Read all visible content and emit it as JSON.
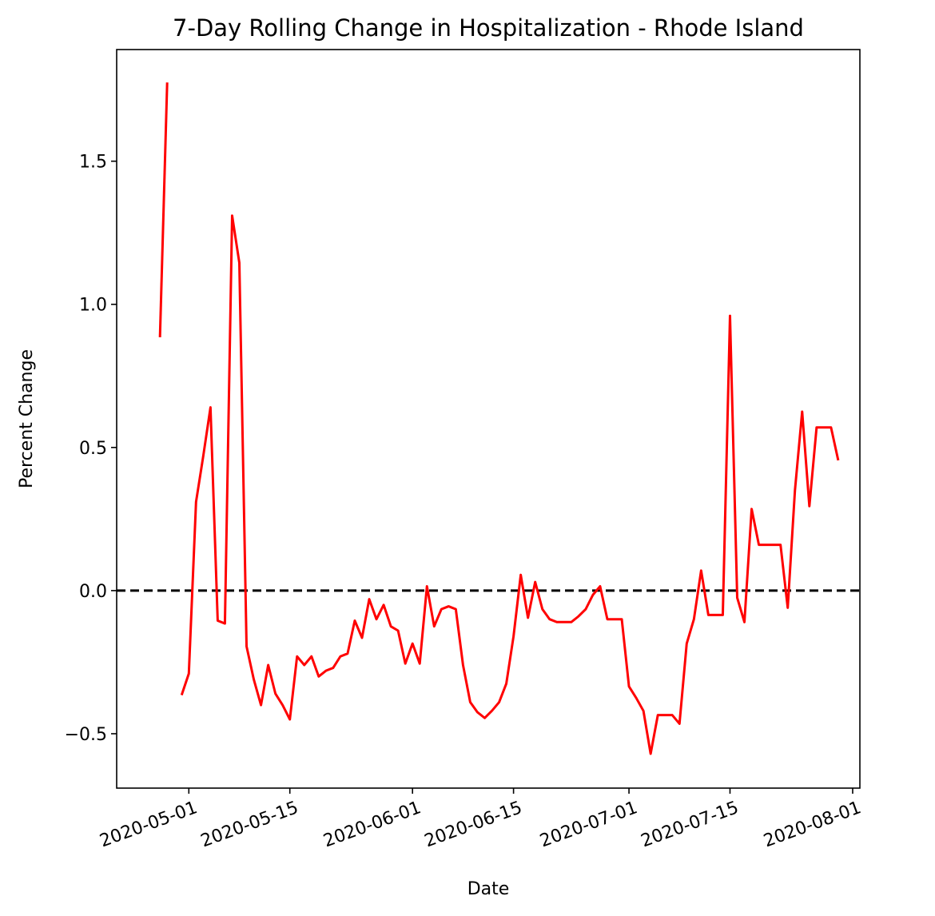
{
  "chart_data": {
    "type": "line",
    "title": "7-Day Rolling Change in Hospitalization - Rhode Island",
    "xlabel": "Date",
    "ylabel": "Percent Change",
    "xlim": [
      "2020-04-21",
      "2020-08-02"
    ],
    "ylim": [
      -0.69,
      1.89
    ],
    "x_ticks": [
      "2020-05-01",
      "2020-05-15",
      "2020-06-01",
      "2020-06-15",
      "2020-07-01",
      "2020-07-15",
      "2020-08-01"
    ],
    "y_ticks": [
      -0.5,
      0.0,
      0.5,
      1.0,
      1.5
    ],
    "y_tick_labels": [
      "−0.5",
      "0.0",
      "0.5",
      "1.0",
      "1.5"
    ],
    "grid": false,
    "reference_line": {
      "y": 0,
      "style": "dashed",
      "color": "#000000"
    },
    "series": [
      {
        "color": "#ff0000",
        "points": [
          [
            "2020-04-27",
            0.885
          ],
          [
            "2020-04-28",
            1.775
          ],
          [
            "2020-04-29",
            null
          ],
          [
            "2020-04-30",
            -0.365
          ],
          [
            "2020-05-01",
            -0.29
          ],
          [
            "2020-05-02",
            0.31
          ],
          [
            "2020-05-03",
            0.47
          ],
          [
            "2020-05-04",
            0.64
          ],
          [
            "2020-05-05",
            -0.105
          ],
          [
            "2020-05-06",
            -0.115
          ],
          [
            "2020-05-07",
            1.31
          ],
          [
            "2020-05-08",
            1.145
          ],
          [
            "2020-05-09",
            -0.195
          ],
          [
            "2020-05-10",
            -0.31
          ],
          [
            "2020-05-11",
            -0.4
          ],
          [
            "2020-05-12",
            -0.26
          ],
          [
            "2020-05-13",
            -0.36
          ],
          [
            "2020-05-14",
            -0.4
          ],
          [
            "2020-05-15",
            -0.45
          ],
          [
            "2020-05-16",
            -0.23
          ],
          [
            "2020-05-17",
            -0.26
          ],
          [
            "2020-05-18",
            -0.23
          ],
          [
            "2020-05-19",
            -0.3
          ],
          [
            "2020-05-20",
            -0.28
          ],
          [
            "2020-05-21",
            -0.27
          ],
          [
            "2020-05-22",
            -0.23
          ],
          [
            "2020-05-23",
            -0.22
          ],
          [
            "2020-05-24",
            -0.105
          ],
          [
            "2020-05-25",
            -0.165
          ],
          [
            "2020-05-26",
            -0.03
          ],
          [
            "2020-05-27",
            -0.1
          ],
          [
            "2020-05-28",
            -0.05
          ],
          [
            "2020-05-29",
            -0.125
          ],
          [
            "2020-05-30",
            -0.14
          ],
          [
            "2020-05-31",
            -0.255
          ],
          [
            "2020-06-01",
            -0.185
          ],
          [
            "2020-06-02",
            -0.255
          ],
          [
            "2020-06-03",
            0.015
          ],
          [
            "2020-06-04",
            -0.125
          ],
          [
            "2020-06-05",
            -0.065
          ],
          [
            "2020-06-06",
            -0.055
          ],
          [
            "2020-06-07",
            -0.065
          ],
          [
            "2020-06-08",
            -0.26
          ],
          [
            "2020-06-09",
            -0.39
          ],
          [
            "2020-06-10",
            -0.425
          ],
          [
            "2020-06-11",
            -0.445
          ],
          [
            "2020-06-12",
            -0.42
          ],
          [
            "2020-06-13",
            -0.39
          ],
          [
            "2020-06-14",
            -0.325
          ],
          [
            "2020-06-15",
            -0.16
          ],
          [
            "2020-06-16",
            0.055
          ],
          [
            "2020-06-17",
            -0.095
          ],
          [
            "2020-06-18",
            0.03
          ],
          [
            "2020-06-19",
            -0.065
          ],
          [
            "2020-06-20",
            -0.1
          ],
          [
            "2020-06-21",
            -0.11
          ],
          [
            "2020-06-22",
            -0.11
          ],
          [
            "2020-06-23",
            -0.11
          ],
          [
            "2020-06-24",
            -0.09
          ],
          [
            "2020-06-25",
            -0.065
          ],
          [
            "2020-06-26",
            -0.015
          ],
          [
            "2020-06-27",
            0.015
          ],
          [
            "2020-06-28",
            -0.1
          ],
          [
            "2020-06-29",
            -0.1
          ],
          [
            "2020-06-30",
            -0.1
          ],
          [
            "2020-07-01",
            -0.335
          ],
          [
            "2020-07-02",
            -0.375
          ],
          [
            "2020-07-03",
            -0.42
          ],
          [
            "2020-07-04",
            -0.57
          ],
          [
            "2020-07-05",
            -0.435
          ],
          [
            "2020-07-06",
            -0.435
          ],
          [
            "2020-07-07",
            -0.435
          ],
          [
            "2020-07-08",
            -0.465
          ],
          [
            "2020-07-09",
            -0.185
          ],
          [
            "2020-07-10",
            -0.1
          ],
          [
            "2020-07-11",
            0.07
          ],
          [
            "2020-07-12",
            -0.085
          ],
          [
            "2020-07-13",
            -0.085
          ],
          [
            "2020-07-14",
            -0.085
          ],
          [
            "2020-07-15",
            0.96
          ],
          [
            "2020-07-16",
            -0.025
          ],
          [
            "2020-07-17",
            -0.11
          ],
          [
            "2020-07-18",
            0.285
          ],
          [
            "2020-07-19",
            0.16
          ],
          [
            "2020-07-20",
            0.16
          ],
          [
            "2020-07-21",
            0.16
          ],
          [
            "2020-07-22",
            0.16
          ],
          [
            "2020-07-23",
            -0.06
          ],
          [
            "2020-07-24",
            0.35
          ],
          [
            "2020-07-25",
            0.625
          ],
          [
            "2020-07-26",
            0.295
          ],
          [
            "2020-07-27",
            0.57
          ],
          [
            "2020-07-28",
            0.57
          ],
          [
            "2020-07-29",
            0.57
          ],
          [
            "2020-07-30",
            0.455
          ]
        ]
      }
    ]
  }
}
